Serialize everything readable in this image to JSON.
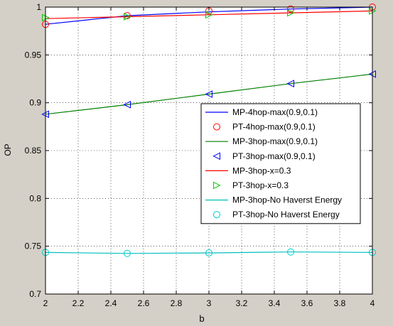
{
  "chart_data": {
    "type": "line",
    "xlabel": "b",
    "ylabel": "OP",
    "xlim": [
      2,
      4
    ],
    "ylim": [
      0.7,
      1
    ],
    "grid": true,
    "legend_placement": "center-right",
    "x_ticks": [
      2,
      2.2,
      2.4,
      2.6,
      2.8,
      3,
      3.2,
      3.4,
      3.6,
      3.8,
      4
    ],
    "x_tick_labels": [
      "2",
      "2.2",
      "2.4",
      "2.6",
      "2.8",
      "3",
      "3.2",
      "3.4",
      "3.6",
      "3.8",
      "4"
    ],
    "y_ticks": [
      0.7,
      0.75,
      0.8,
      0.85,
      0.9,
      0.95,
      1
    ],
    "y_tick_labels": [
      "0.7",
      "0.75",
      "0.8",
      "0.85",
      "0.9",
      "0.95",
      "1"
    ],
    "series": [
      {
        "name": "MP-4hop-max(0.9,0.1)",
        "kind": "line",
        "color": "#0000ff",
        "x": [
          2,
          2.5,
          3,
          3.5,
          4
        ],
        "y": [
          0.982,
          0.991,
          0.995,
          0.998,
          1.0
        ]
      },
      {
        "name": "PT-4hop-max(0.9,0.1)",
        "kind": "marker",
        "marker": "circle",
        "color": "#ff0000",
        "x": [
          2,
          2.5,
          3,
          3.5,
          4
        ],
        "y": [
          0.982,
          0.991,
          0.996,
          0.998,
          1.0
        ]
      },
      {
        "name": "MP-3hop-max(0.9,0.1)",
        "kind": "line",
        "color": "#008000",
        "x": [
          2,
          2.5,
          3,
          3.5,
          4
        ],
        "y": [
          0.888,
          0.898,
          0.909,
          0.92,
          0.93
        ]
      },
      {
        "name": "PT-3hop-max(0.9,0.1)",
        "kind": "marker",
        "marker": "triangle-left",
        "color": "#0000ff",
        "x": [
          2,
          2.5,
          3,
          3.5,
          4
        ],
        "y": [
          0.888,
          0.898,
          0.909,
          0.92,
          0.93
        ]
      },
      {
        "name": "MP-3hop-x=0.3",
        "kind": "line",
        "color": "#ff0000",
        "x": [
          2,
          2.5,
          3,
          3.5,
          4
        ],
        "y": [
          0.988,
          0.99,
          0.992,
          0.994,
          0.996
        ]
      },
      {
        "name": "PT-3hop-x=0.3",
        "kind": "marker",
        "marker": "triangle-right",
        "color": "#00cc00",
        "x": [
          2,
          2.5,
          3,
          3.5,
          4
        ],
        "y": [
          0.989,
          0.99,
          0.992,
          0.994,
          0.996
        ]
      },
      {
        "name": "MP-3hop-No Haverst Energy",
        "kind": "line",
        "color": "#00bfbf",
        "x": [
          2,
          2.5,
          3,
          3.5,
          4
        ],
        "y": [
          0.7435,
          0.7425,
          0.743,
          0.744,
          0.7435
        ]
      },
      {
        "name": "PT-3hop-No Haverst Energy",
        "kind": "marker",
        "marker": "circle",
        "color": "#00cccc",
        "x": [
          2,
          2.5,
          3,
          3.5,
          4
        ],
        "y": [
          0.7435,
          0.7425,
          0.743,
          0.744,
          0.7435
        ]
      }
    ]
  }
}
